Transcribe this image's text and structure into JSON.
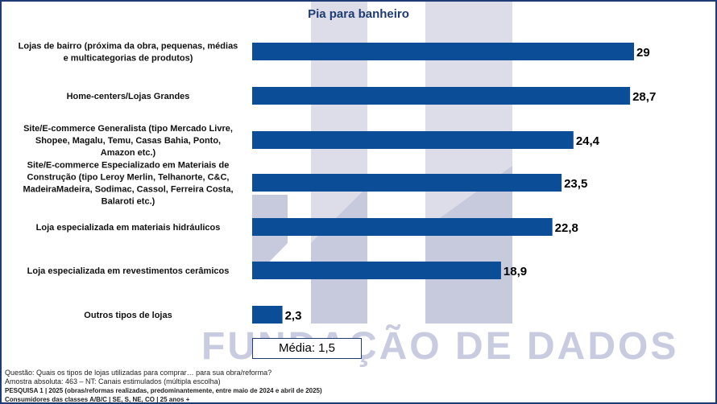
{
  "chart_data": {
    "type": "bar",
    "orientation": "horizontal",
    "title": "Pia para banheiro",
    "categories": [
      [
        "Lojas de bairro (próxima da obra, pequenas, médias",
        "e multicategorias de produtos)"
      ],
      [
        "Home-centers/Lojas Grandes"
      ],
      [
        "Site/E-commerce Generalista (tipo Mercado Livre,",
        "Shopee, Magalu, Temu, Casas Bahia, Ponto,",
        "Amazon etc.)"
      ],
      [
        "Site/E-commerce Especializado em Materiais de",
        "Construção (tipo Leroy Merlin, Telhanorte, C&C,",
        "MadeiraMadeira, Sodimac, Cassol, Ferreira Costa,",
        "Balaroti etc.)"
      ],
      [
        "Loja especializada em materiais hidráulicos"
      ],
      [
        "Loja especializada em revestimentos cerâmicos"
      ],
      [
        "Outros tipos de lojas"
      ]
    ],
    "values": [
      29,
      28.7,
      24.4,
      23.5,
      22.8,
      18.9,
      2.3
    ],
    "value_labels": [
      "29",
      "28,7",
      "24,4",
      "23,5",
      "22,8",
      "18,9",
      "2,3"
    ],
    "xlim": [
      0,
      30
    ],
    "grid": false,
    "legend": "none",
    "bar_color": "#0b4d96"
  },
  "media_label": "Média: 1,5",
  "watermark": "FUNDAÇÃO DE DADOS",
  "footer": {
    "question": "Questão: Quais os tipos de lojas utilizadas para comprar… para sua obra/reforma?",
    "sample": "Amostra absoluta: 463 – NT: Canais estimulados (múltipla escolha)",
    "survey": "PESQUISA 1 | 2025 (obras/reformas realizadas, predominantemente, entre maio de 2024 e abril de 2025)",
    "consumers": "Consumidores das classes A/B/C | SE, S, NE, CO | 25 anos +"
  },
  "colors": {
    "frame": "#1f3b73",
    "title": "#1f3b73",
    "watermark": "#c9cbe0"
  }
}
